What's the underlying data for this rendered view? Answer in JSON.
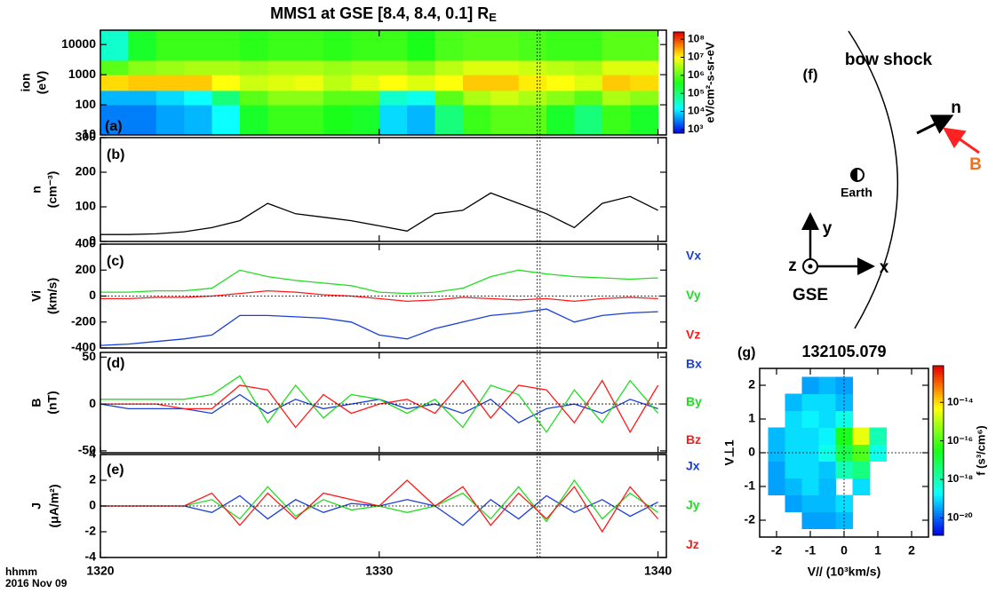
{
  "chart_data": [
    {
      "type": "heatmap",
      "title": "MMS1 at GSE [8.4, 8.4, 0.1] R",
      "title_subscript": "E",
      "panel_label": "(a)",
      "ylabel": [
        "ion",
        "(eV)"
      ],
      "ylog": true,
      "ylim": [
        10,
        30000
      ],
      "yticks": [
        10,
        100,
        1000,
        10000
      ],
      "xlim": [
        1320,
        1340.3
      ],
      "xticks": [
        1320,
        1330,
        1340
      ],
      "x_edges": [
        1320,
        1321,
        1322,
        1323,
        1324,
        1325,
        1326,
        1327,
        1328,
        1329,
        1330,
        1331,
        1332,
        1333,
        1334,
        1335,
        1336,
        1337,
        1338,
        1339,
        1340
      ],
      "y_edges": [
        10,
        100,
        300,
        1000,
        3000,
        30000
      ],
      "values": [
        [
          3.5,
          3.5,
          3.7,
          3.8,
          4.2,
          5.5,
          5.8,
          5.8,
          5.6,
          5.5,
          4.0,
          3.8,
          5.0,
          5.8,
          6.0,
          6.0,
          5.5,
          5.0,
          5.8,
          5.5
        ],
        [
          3.8,
          3.8,
          4.0,
          4.2,
          5.0,
          6.0,
          6.3,
          6.3,
          6.0,
          6.0,
          4.5,
          4.3,
          6.0,
          6.5,
          6.7,
          6.5,
          6.3,
          6.0,
          6.5,
          6.3
        ],
        [
          7.2,
          7.3,
          7.3,
          7.3,
          7.0,
          6.7,
          6.8,
          6.9,
          6.6,
          6.8,
          7.0,
          6.8,
          7.0,
          7.3,
          7.3,
          7.1,
          7.0,
          6.8,
          7.3,
          7.2
        ],
        [
          6.0,
          6.3,
          6.4,
          6.5,
          6.5,
          6.4,
          6.5,
          6.5,
          6.4,
          6.5,
          6.5,
          6.3,
          6.6,
          6.8,
          6.8,
          6.7,
          6.6,
          6.5,
          6.8,
          6.8
        ],
        [
          4.5,
          5.5,
          5.8,
          5.8,
          5.8,
          5.7,
          5.8,
          5.8,
          5.7,
          5.8,
          5.8,
          5.6,
          5.9,
          6.0,
          6.0,
          5.9,
          5.8,
          5.8,
          6.0,
          6.0
        ]
      ],
      "colormap": "rainbow",
      "clim": [
        2.8,
        8.4
      ],
      "cticks": [
        {
          "value": 3,
          "label": "10³"
        },
        {
          "value": 4,
          "label": "10⁴"
        },
        {
          "value": 5,
          "label": "10⁵"
        },
        {
          "value": 6,
          "label": "10⁶"
        },
        {
          "value": 7,
          "label": "10⁷"
        },
        {
          "value": 8,
          "label": "10⁸"
        }
      ],
      "colorbar_label": "eV/cm²-s-sr-eV",
      "vlines": [
        1335.67,
        1335.77
      ]
    },
    {
      "type": "line",
      "panel_label": "(b)",
      "ylabel": [
        "n",
        "(cm⁻³)"
      ],
      "xlim": [
        1320,
        1340.3
      ],
      "xticks": [
        1320,
        1330,
        1340
      ],
      "ylim": [
        0,
        300
      ],
      "yticks": [
        0,
        100,
        200,
        300
      ],
      "x": [
        1320,
        1321,
        1322,
        1323,
        1324,
        1325,
        1326,
        1327,
        1328,
        1329,
        1330,
        1331,
        1332,
        1333,
        1334,
        1335,
        1336,
        1337,
        1338,
        1339,
        1340
      ],
      "series": [
        {
          "color": "#000000",
          "values": [
            20,
            20,
            22,
            28,
            40,
            60,
            110,
            80,
            70,
            60,
            45,
            30,
            80,
            90,
            140,
            110,
            80,
            40,
            110,
            130,
            90
          ]
        }
      ]
    },
    {
      "type": "line",
      "panel_label": "(c)",
      "ylabel": [
        "Vi",
        "(km/s)"
      ],
      "xlim": [
        1320,
        1340.3
      ],
      "xticks": [
        1320,
        1330,
        1340
      ],
      "ylim": [
        -400,
        400
      ],
      "yticks": [
        -400,
        -200,
        0,
        200,
        400
      ],
      "hlines": [
        0
      ],
      "x": [
        1320,
        1321,
        1322,
        1323,
        1324,
        1325,
        1326,
        1327,
        1328,
        1329,
        1330,
        1331,
        1332,
        1333,
        1334,
        1335,
        1336,
        1337,
        1338,
        1339,
        1340
      ],
      "series": [
        {
          "name": "Vx",
          "color": "#1a3fd6",
          "values": [
            -380,
            -370,
            -350,
            -330,
            -300,
            -150,
            -150,
            -160,
            -170,
            -200,
            -300,
            -330,
            -250,
            -200,
            -150,
            -130,
            -100,
            -200,
            -150,
            -130,
            -120
          ]
        },
        {
          "name": "Vy",
          "color": "#22dd22",
          "values": [
            30,
            30,
            40,
            40,
            60,
            200,
            150,
            120,
            100,
            80,
            30,
            20,
            30,
            60,
            150,
            200,
            170,
            150,
            140,
            130,
            140
          ]
        },
        {
          "name": "Vz",
          "color": "#ff1a1a",
          "values": [
            -20,
            -20,
            -10,
            -10,
            0,
            20,
            40,
            30,
            10,
            0,
            -20,
            -40,
            -30,
            -10,
            -20,
            -30,
            -20,
            -40,
            -20,
            -10,
            -20
          ]
        }
      ]
    },
    {
      "type": "line",
      "panel_label": "(d)",
      "ylabel": [
        "B",
        "(nT)"
      ],
      "xlim": [
        1320,
        1340.3
      ],
      "xticks": [
        1320,
        1330,
        1340
      ],
      "ylim": [
        -52,
        55
      ],
      "yticks": [
        -50,
        0,
        50
      ],
      "hlines": [
        0
      ],
      "x": [
        1320,
        1321,
        1322,
        1323,
        1324,
        1325,
        1326,
        1327,
        1328,
        1329,
        1330,
        1331,
        1332,
        1333,
        1334,
        1335,
        1336,
        1337,
        1338,
        1339,
        1340
      ],
      "series": [
        {
          "name": "Bx",
          "color": "#1a3fd6",
          "values": [
            0,
            -5,
            -5,
            -5,
            -10,
            10,
            -10,
            5,
            -5,
            0,
            5,
            -5,
            0,
            -10,
            5,
            -20,
            -5,
            0,
            -10,
            5,
            -5
          ]
        },
        {
          "name": "By",
          "color": "#22dd22",
          "values": [
            5,
            5,
            5,
            5,
            10,
            30,
            -20,
            20,
            -15,
            10,
            5,
            -10,
            5,
            -25,
            20,
            10,
            -30,
            15,
            -20,
            25,
            -10
          ]
        },
        {
          "name": "Bz",
          "color": "#ff1a1a",
          "values": [
            0,
            0,
            0,
            -5,
            -5,
            20,
            15,
            -25,
            10,
            -10,
            0,
            5,
            -10,
            25,
            -15,
            20,
            15,
            -20,
            25,
            -30,
            20
          ]
        }
      ]
    },
    {
      "type": "line",
      "panel_label": "(e)",
      "ylabel": [
        "J",
        "(μA/m²)"
      ],
      "xlim": [
        1320,
        1340.3
      ],
      "xticks": [
        1320,
        1330,
        1340
      ],
      "show_xtick_labels": true,
      "xlabel": [
        "hhmm",
        "2016 Nov 09"
      ],
      "ylim": [
        -4,
        4
      ],
      "yticks": [
        -4,
        -2,
        0,
        2,
        4
      ],
      "hlines": [
        0
      ],
      "x": [
        1320,
        1321,
        1322,
        1323,
        1324,
        1325,
        1326,
        1327,
        1328,
        1329,
        1330,
        1331,
        1332,
        1333,
        1334,
        1335,
        1336,
        1337,
        1338,
        1339,
        1340
      ],
      "series": [
        {
          "name": "Jx",
          "color": "#1a3fd6",
          "values": [
            0,
            0,
            0,
            0,
            -0.5,
            0.8,
            -1,
            0.5,
            -0.5,
            0.2,
            0,
            0.5,
            0,
            -1.5,
            0.5,
            -1,
            0.8,
            -0.5,
            0.5,
            -0.8,
            0.3
          ]
        },
        {
          "name": "Jy",
          "color": "#22dd22",
          "values": [
            0,
            0,
            0,
            0,
            0.5,
            -1,
            1.5,
            -0.8,
            0.5,
            -0.3,
            0,
            -0.5,
            0,
            1,
            -1,
            1.5,
            -1.2,
            2,
            -1,
            1,
            -0.5
          ]
        },
        {
          "name": "Jz",
          "color": "#ff1a1a",
          "values": [
            0,
            0,
            0,
            0,
            1,
            -1.5,
            1,
            -1,
            1,
            0.5,
            0,
            2,
            0,
            1.5,
            -1.5,
            1,
            -1,
            1.5,
            -2,
            1.5,
            -1
          ]
        }
      ]
    },
    {
      "type": "heatmap",
      "title": "132105.079",
      "panel_label": "(g)",
      "xlabel": [
        "V// (10³km/s)"
      ],
      "ylabel": [
        "V⊥1"
      ],
      "xlim": [
        -2.5,
        2.5
      ],
      "ylim": [
        -2.5,
        2.5
      ],
      "xticks": [
        -2,
        -1,
        0,
        1,
        2
      ],
      "yticks": [
        -2,
        -1,
        0,
        1,
        2
      ],
      "show_xtick_labels": true,
      "x_edges": [
        -2.25,
        -1.75,
        -1.25,
        -0.75,
        -0.25,
        0.25,
        0.75,
        1.25,
        1.75,
        2.25
      ],
      "y_edges": [
        -2.25,
        -1.75,
        -1.25,
        -0.75,
        -0.25,
        0.25,
        0.75,
        1.25,
        1.75,
        2.25
      ],
      "values": [
        [
          null,
          null,
          -19.5,
          -19.5,
          -19.3,
          null,
          null,
          null,
          null
        ],
        [
          null,
          -19.5,
          -19.3,
          -19.3,
          -19.0,
          null,
          null,
          null,
          null
        ],
        [
          -19.5,
          -19.3,
          -19.0,
          -19.3,
          null,
          -19.0,
          null,
          null,
          null
        ],
        [
          -19.5,
          -19.0,
          -19.0,
          -19.2,
          -18.0,
          -17.5,
          null,
          null,
          null
        ],
        [
          -19.3,
          -19.0,
          -19.0,
          -18.5,
          -17.0,
          -16.0,
          -18.5,
          null,
          null
        ],
        [
          -19.3,
          -19.0,
          -19.0,
          -18.8,
          -16.5,
          -14.5,
          -18.0,
          null,
          null
        ],
        [
          null,
          -19.0,
          -18.8,
          -19.0,
          -18.5,
          null,
          null,
          null,
          null
        ],
        [
          null,
          -19.3,
          -19.0,
          -19.0,
          -19.3,
          null,
          null,
          null,
          null
        ],
        [
          null,
          null,
          -19.5,
          -19.3,
          -19.5,
          null,
          null,
          null,
          null
        ]
      ],
      "colormap": "rainbow",
      "clim": [
        -20.9,
        -12.1
      ],
      "cticks": [
        {
          "value": -14,
          "label": "10⁻¹⁴"
        },
        {
          "value": -16,
          "label": "10⁻¹⁶"
        },
        {
          "value": -18,
          "label": "10⁻¹⁸"
        },
        {
          "value": -20,
          "label": "10⁻²⁰"
        }
      ],
      "colorbar_label": "f (s³/cm⁶)",
      "hlines": [
        0
      ],
      "vlines": [
        0
      ]
    }
  ],
  "diagram": {
    "label": "(f)",
    "bow_shock": "bow shock",
    "normal": "n",
    "field": "B",
    "earth": "Earth",
    "y_axis": "y",
    "x_axis": "x",
    "z_axis": "z",
    "frame": "GSE"
  }
}
